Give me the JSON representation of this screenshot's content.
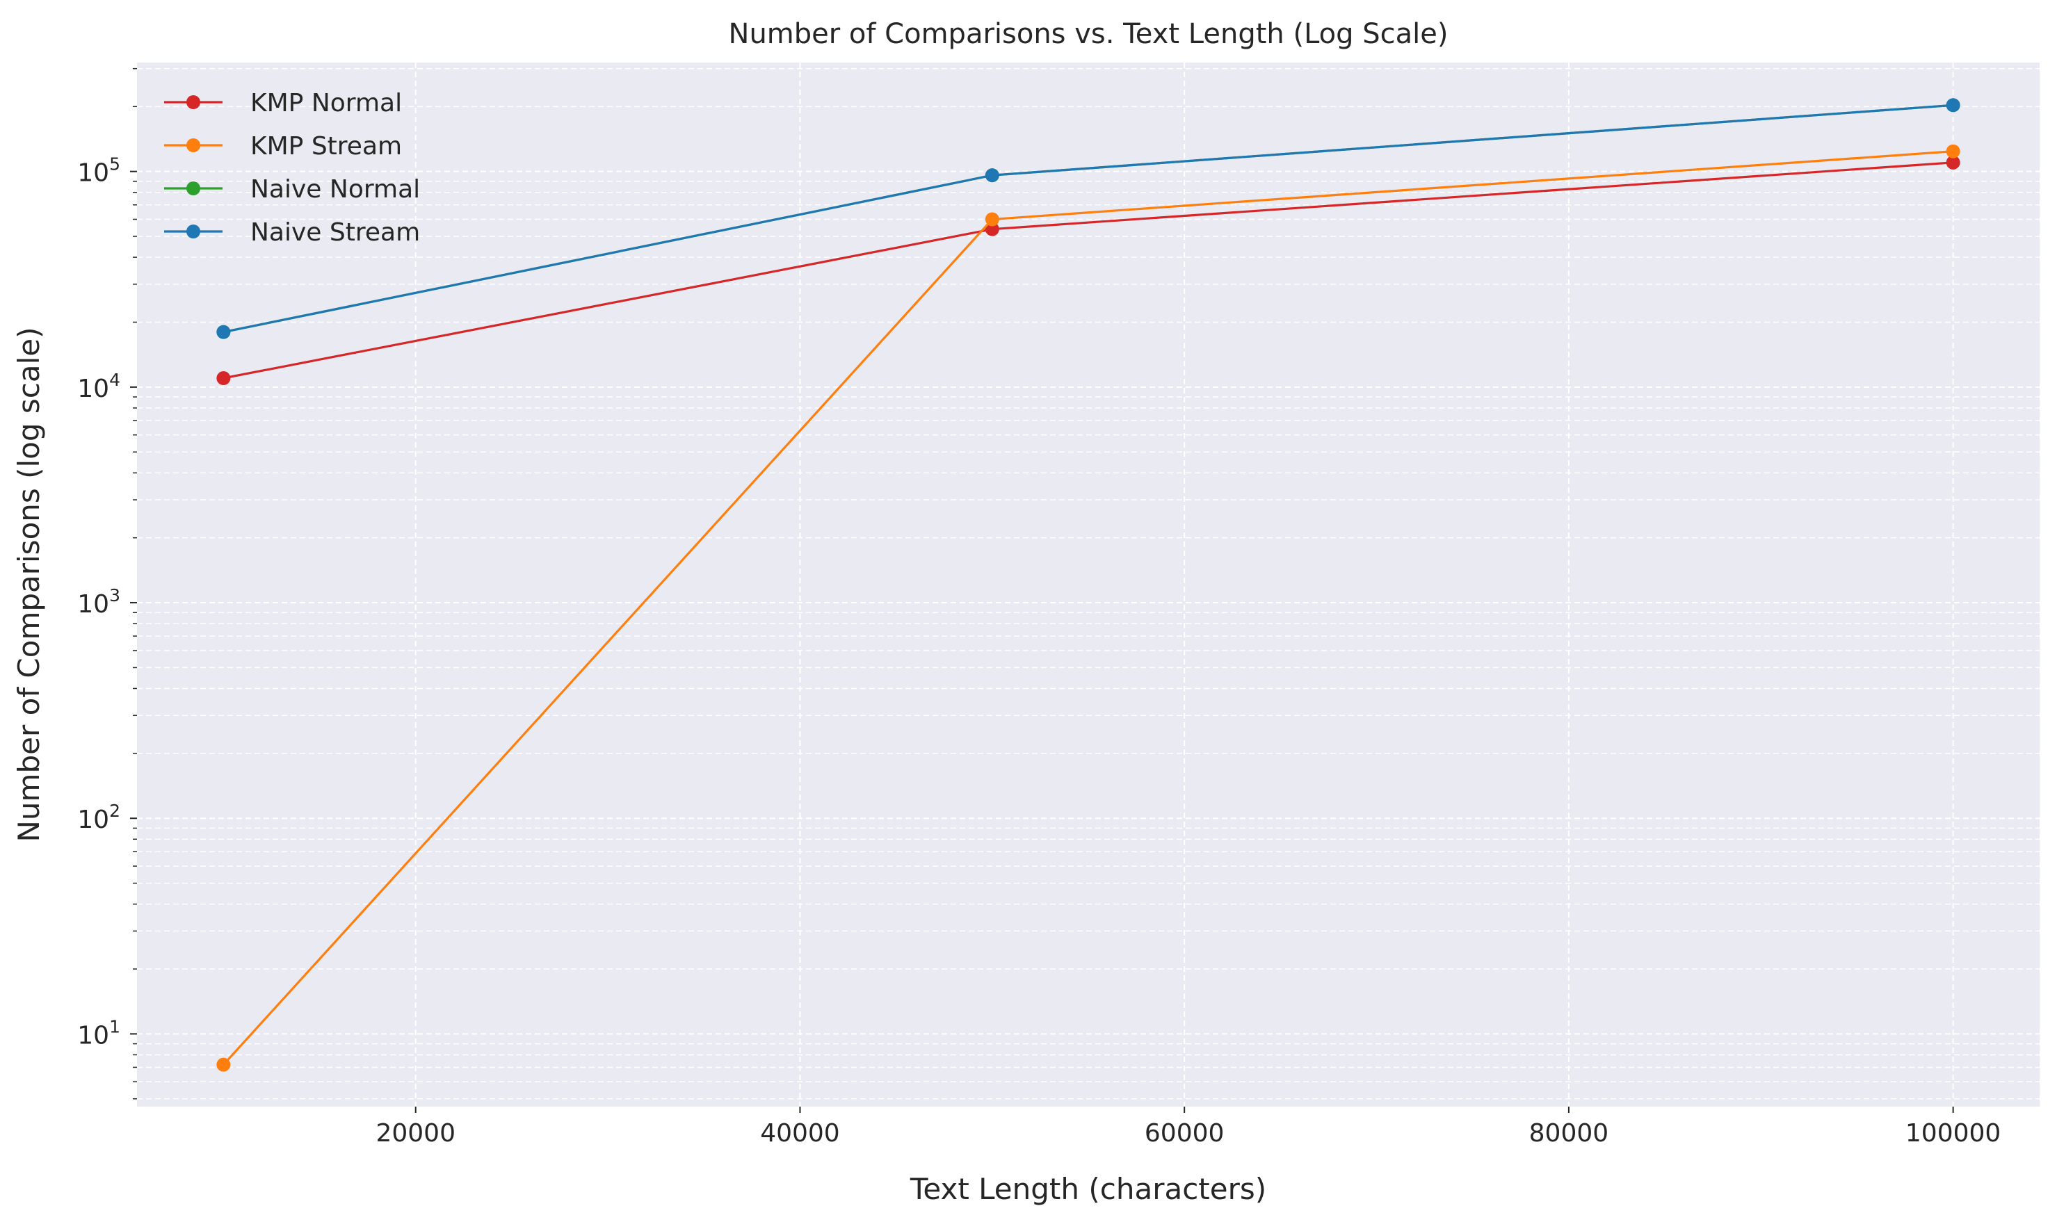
{
  "chart_data": {
    "type": "line",
    "title": "Number of Comparisons vs. Text Length (Log Scale)",
    "xlabel": "Text Length (characters)",
    "ylabel": "Number of Comparisons (log scale)",
    "xscale": "linear",
    "yscale": "log",
    "xlim": [
      5500,
      104500
    ],
    "ylim": [
      4.6,
      320000
    ],
    "xticks": [
      20000,
      40000,
      60000,
      80000,
      100000
    ],
    "xtick_labels": [
      "20000",
      "40000",
      "60000",
      "80000",
      "100000"
    ],
    "yticks": [
      10,
      100,
      1000,
      10000,
      100000
    ],
    "ytick_labels": [
      {
        "base": "10",
        "exp": "1"
      },
      {
        "base": "10",
        "exp": "2"
      },
      {
        "base": "10",
        "exp": "3"
      },
      {
        "base": "10",
        "exp": "4"
      },
      {
        "base": "10",
        "exp": "5"
      }
    ],
    "grid": true,
    "legend_position": "top-left",
    "background": "#eaeaf2",
    "x": [
      10000,
      50000,
      100000
    ],
    "series": [
      {
        "name": "KMP Normal",
        "color": "#d62728",
        "values": [
          11000,
          54000,
          110000
        ]
      },
      {
        "name": "KMP Stream",
        "color": "#ff7f0e",
        "values": [
          7.2,
          60000,
          124000
        ]
      },
      {
        "name": "Naive Normal",
        "color": "#2ca02c",
        "values": [
          18000,
          96000,
          203000
        ]
      },
      {
        "name": "Naive Stream",
        "color": "#1f77b4",
        "values": [
          18000,
          96000,
          203000
        ]
      }
    ]
  }
}
